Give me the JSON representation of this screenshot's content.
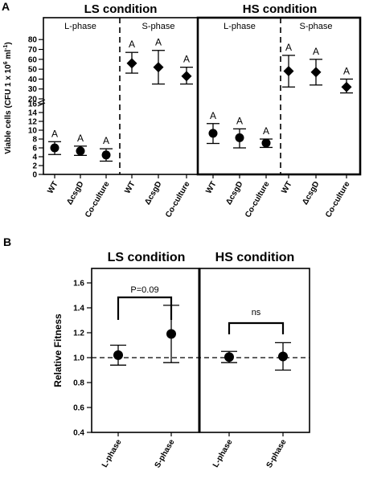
{
  "panel_labels": {
    "a": "A",
    "b": "B"
  },
  "chart_data": [
    {
      "type": "scatter",
      "panel": "A",
      "conditions": [
        {
          "title": "LS condition",
          "phases": [
            {
              "label": "L-phase",
              "marker": "circle"
            },
            {
              "label": "S-phase",
              "marker": "diamond"
            }
          ]
        },
        {
          "title": "HS condition",
          "phases": [
            {
              "label": "L-phase",
              "marker": "circle"
            },
            {
              "label": "S-phase",
              "marker": "diamond"
            }
          ]
        }
      ],
      "ylabel_main": "Viable cells (CFU 1 x 10",
      "ylabel_sup1": "6",
      "ylabel_mid": " ml",
      "ylabel_sup2": "-1",
      "ylabel_end": ")",
      "yticks": [
        "0",
        "2",
        "4",
        "6",
        "8",
        "10",
        "12",
        "14",
        "16",
        "20",
        "30",
        "40",
        "50",
        "60",
        "70",
        "80"
      ],
      "axis_break": true,
      "categories": [
        "WT",
        "ΔcsgD",
        "Co-culture"
      ],
      "sig_letter": "A",
      "points": [
        {
          "group": 0,
          "x": "WT",
          "y": 6.0,
          "lo": 4.5,
          "hi": 7.4
        },
        {
          "group": 0,
          "x": "ΔcsgD",
          "y": 5.3,
          "lo": 4.3,
          "hi": 6.4
        },
        {
          "group": 0,
          "x": "Co-culture",
          "y": 4.4,
          "lo": 3.0,
          "hi": 5.8
        },
        {
          "group": 1,
          "x": "WT",
          "y": 56,
          "lo": 46,
          "hi": 67
        },
        {
          "group": 1,
          "x": "ΔcsgD",
          "y": 52,
          "lo": 35,
          "hi": 69
        },
        {
          "group": 1,
          "x": "Co-culture",
          "y": 43,
          "lo": 35,
          "hi": 52
        },
        {
          "group": 2,
          "x": "WT",
          "y": 9.3,
          "lo": 7.0,
          "hi": 11.5
        },
        {
          "group": 2,
          "x": "ΔcsgD",
          "y": 8.3,
          "lo": 6.0,
          "hi": 10.3
        },
        {
          "group": 2,
          "x": "Co-culture",
          "y": 7.1,
          "lo": 6.1,
          "hi": 8.0
        },
        {
          "group": 3,
          "x": "WT",
          "y": 48,
          "lo": 32,
          "hi": 64
        },
        {
          "group": 3,
          "x": "ΔcsgD",
          "y": 47,
          "lo": 34,
          "hi": 60
        },
        {
          "group": 3,
          "x": "Co-culture",
          "y": 32,
          "lo": 26,
          "hi": 40
        }
      ]
    },
    {
      "type": "scatter",
      "panel": "B",
      "titles": [
        "LS condition",
        "HS condition"
      ],
      "ylabel": "Relative Fitness",
      "ylim": [
        0.4,
        1.6
      ],
      "yticks": [
        "0.4",
        "0.6",
        "0.8",
        "1.0",
        "1.2",
        "1.4",
        "1.6"
      ],
      "reference_line": 1.0,
      "categories": [
        "L-phase",
        "S-phase"
      ],
      "points": [
        {
          "group": 0,
          "x": "L-phase",
          "y": 1.02,
          "lo": 0.94,
          "hi": 1.1
        },
        {
          "group": 0,
          "x": "S-phase",
          "y": 1.19,
          "lo": 0.96,
          "hi": 1.42
        },
        {
          "group": 1,
          "x": "L-phase",
          "y": 1.005,
          "lo": 0.96,
          "hi": 1.05
        },
        {
          "group": 1,
          "x": "S-phase",
          "y": 1.01,
          "lo": 0.9,
          "hi": 1.12
        }
      ],
      "annotations": [
        {
          "group": 0,
          "text": "P=0.09"
        },
        {
          "group": 1,
          "text": "ns"
        }
      ]
    }
  ]
}
